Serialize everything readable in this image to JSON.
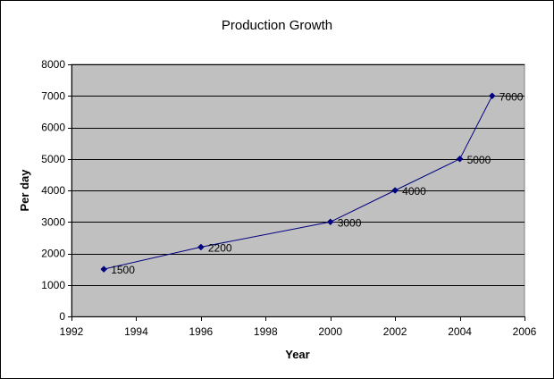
{
  "chart_data": {
    "type": "line",
    "title": "Production Growth",
    "xlabel": "Year",
    "ylabel": "Per day",
    "xlim": [
      1992,
      2006
    ],
    "ylim": [
      0,
      8000
    ],
    "x_ticks": [
      "1992",
      "1994",
      "1996",
      "1998",
      "2000",
      "2002",
      "2004",
      "2006"
    ],
    "y_ticks": [
      "0",
      "1000",
      "2000",
      "3000",
      "4000",
      "5000",
      "6000",
      "7000",
      "8000"
    ],
    "grid": "horizontal",
    "legend": "none",
    "series": [
      {
        "x": [
          1993,
          1996,
          2000,
          2002,
          2004,
          2005
        ],
        "y": [
          1500,
          2200,
          3000,
          4000,
          5000,
          7000
        ],
        "labels": [
          "1500",
          "2200",
          "3000",
          "4000",
          "5000",
          "7000"
        ],
        "color": "#000080",
        "marker": "diamond"
      }
    ],
    "plot_background": "#c0c0c0",
    "chart_background": "#ffffff"
  }
}
